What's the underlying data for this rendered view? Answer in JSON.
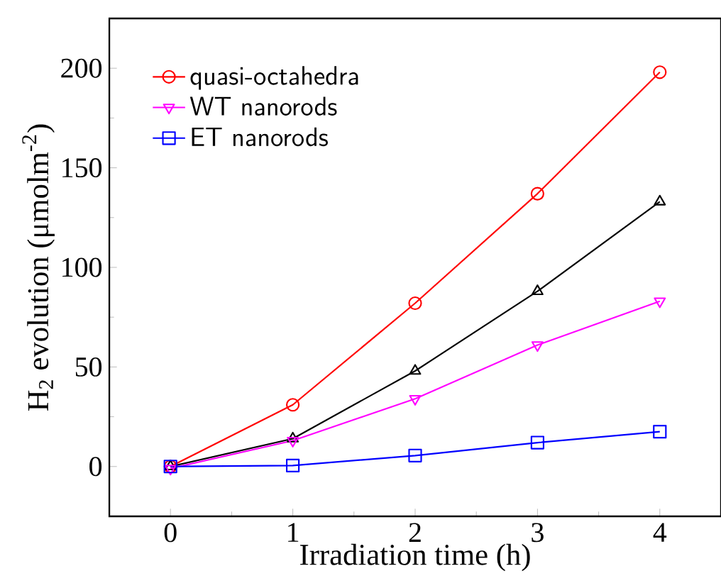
{
  "chart_data": {
    "type": "line",
    "xlabel": "Irradiation time (h)",
    "ylabel": "H$_{2}$ evolution (μmolm$^{-2}$)",
    "x": [
      0,
      1,
      2,
      3,
      4
    ],
    "series": [
      {
        "name": "quasi-octahedra",
        "color": "#ff0000",
        "marker": "circle",
        "values": [
          0,
          31,
          82,
          137,
          198
        ]
      },
      {
        "color": "#000000",
        "marker": "triangle",
        "values": [
          0,
          14,
          48,
          88,
          133
        ]
      },
      {
        "name": "WT nanorods",
        "color": "#ff00ff",
        "marker": "triangle down",
        "values": [
          -1,
          13,
          34,
          61,
          83
        ]
      },
      {
        "name": "ET nanorods",
        "color": "#0000ff",
        "marker": "square",
        "values": [
          0,
          0.5,
          5.5,
          12,
          17.5
        ]
      }
    ],
    "xlim": [
      -0.5,
      4.5
    ],
    "xticks": [
      0,
      1,
      2,
      3,
      4
    ],
    "ylim": [
      -25,
      225
    ],
    "yticks": [
      0,
      50,
      100,
      150,
      200
    ],
    "grid": false,
    "legend": "top left",
    "line_style": "solid"
  }
}
